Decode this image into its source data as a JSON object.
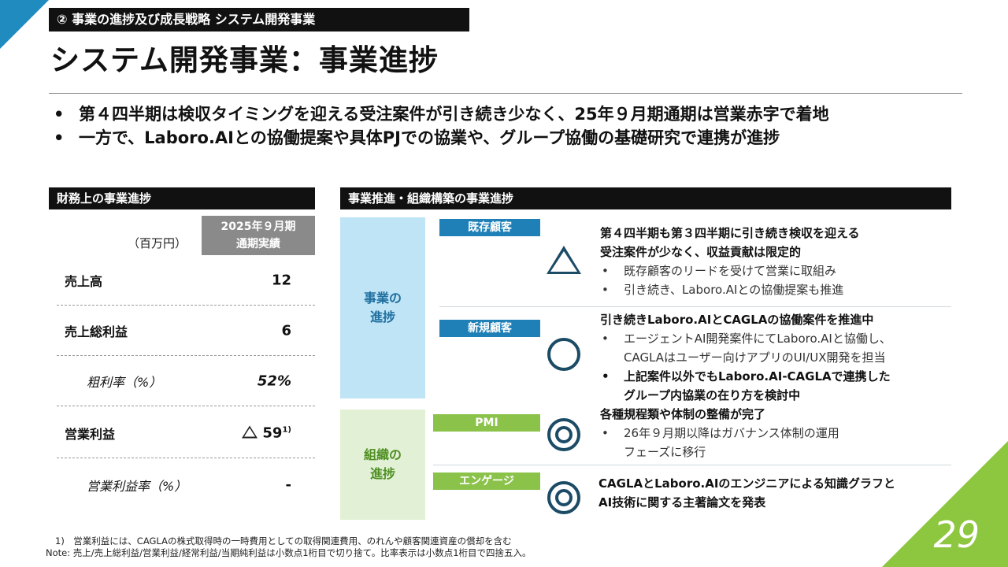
{
  "section_tag": "② 事業の進捗及び成長戦略 システム開発事業",
  "title": "システム開発事業：事業進捗",
  "bullets": [
    "第４四半期は検収タイミングを迎える受注案件が引き続き少なく、25年９月期通期は営業赤字で着地",
    "一方で、Laboro.AIとの協働提案や具体PJでの協業や、グループ協働の基礎研究で連携が進捗"
  ],
  "financial": {
    "header": "財務上の事業進捗",
    "unit": "（百万円）",
    "period_line1": "2025年９月期",
    "period_line2": "通期実績",
    "rows": [
      {
        "label": "売上高",
        "value": "12"
      },
      {
        "label": "売上総利益",
        "value": "6"
      },
      {
        "label": "粗利率（%）",
        "value": "52%"
      },
      {
        "label": "営業利益",
        "value": "59",
        "note": "1)",
        "negative": true
      },
      {
        "label": "営業利益率（%）",
        "value": "-"
      }
    ]
  },
  "progress": {
    "header": "事業推進・組織構築の事業進捗",
    "biz_label_1": "事業の",
    "biz_label_2": "進捗",
    "org_label_1": "組織の",
    "org_label_2": "進捗",
    "existing": {
      "pill": "既存顧客",
      "symbol": "triangle",
      "head1": "第４四半期も第３四半期に引き続き検収を迎える",
      "head2": "受注案件が少なく、収益貢献は限定的",
      "items": [
        "既存顧客のリードを受けて営業に取組み",
        "引き続き、Laboro.AIとの協働提案も推進"
      ]
    },
    "new": {
      "pill": "新規顧客",
      "symbol": "circle",
      "head": "引き続きLaboro.AIとCAGLAの協働案件を推進中",
      "item1_l1": "エージェントAI開発案件にてLaboro.AIと協働し、",
      "item1_l2": "CAGLAはユーザー向けアプリのUI/UX開発を担当",
      "item2_l1": "上記案件以外でもLaboro.AI-CAGLAで連携した",
      "item2_l2": "グループ内協業の在り方を検討中"
    },
    "pmi": {
      "pill": "PMI",
      "symbol": "double-circle",
      "head": "各種規程類や体制の整備が完了",
      "item_l1": "26年９月期以降はガバナンス体制の運用",
      "item_l2": "フェーズに移行"
    },
    "engagement": {
      "pill": "エンゲージ",
      "symbol": "double-circle",
      "head1": "CAGLAとLaboro.AIのエンジニアによる知識グラフと",
      "head2": "AI技術に関する主著論文を発表"
    }
  },
  "footnotes": {
    "note1": "1)　営業利益には、CAGLAの株式取得時の一時費用としての取得関連費用、のれんや顧客関連資産の償却を含む",
    "note2": "Note: 売上/売上総利益/営業利益/経常利益/当期純利益は小数点1桁目で切り捨て。比率表示は小数点1桁目で四捨五入。"
  },
  "page_number": "29",
  "colors": {
    "accent_blue": "#1f8bbf",
    "accent_green": "#8dc63f",
    "pill_blue": "#1f80b8",
    "pill_green": "#8ac24a"
  }
}
